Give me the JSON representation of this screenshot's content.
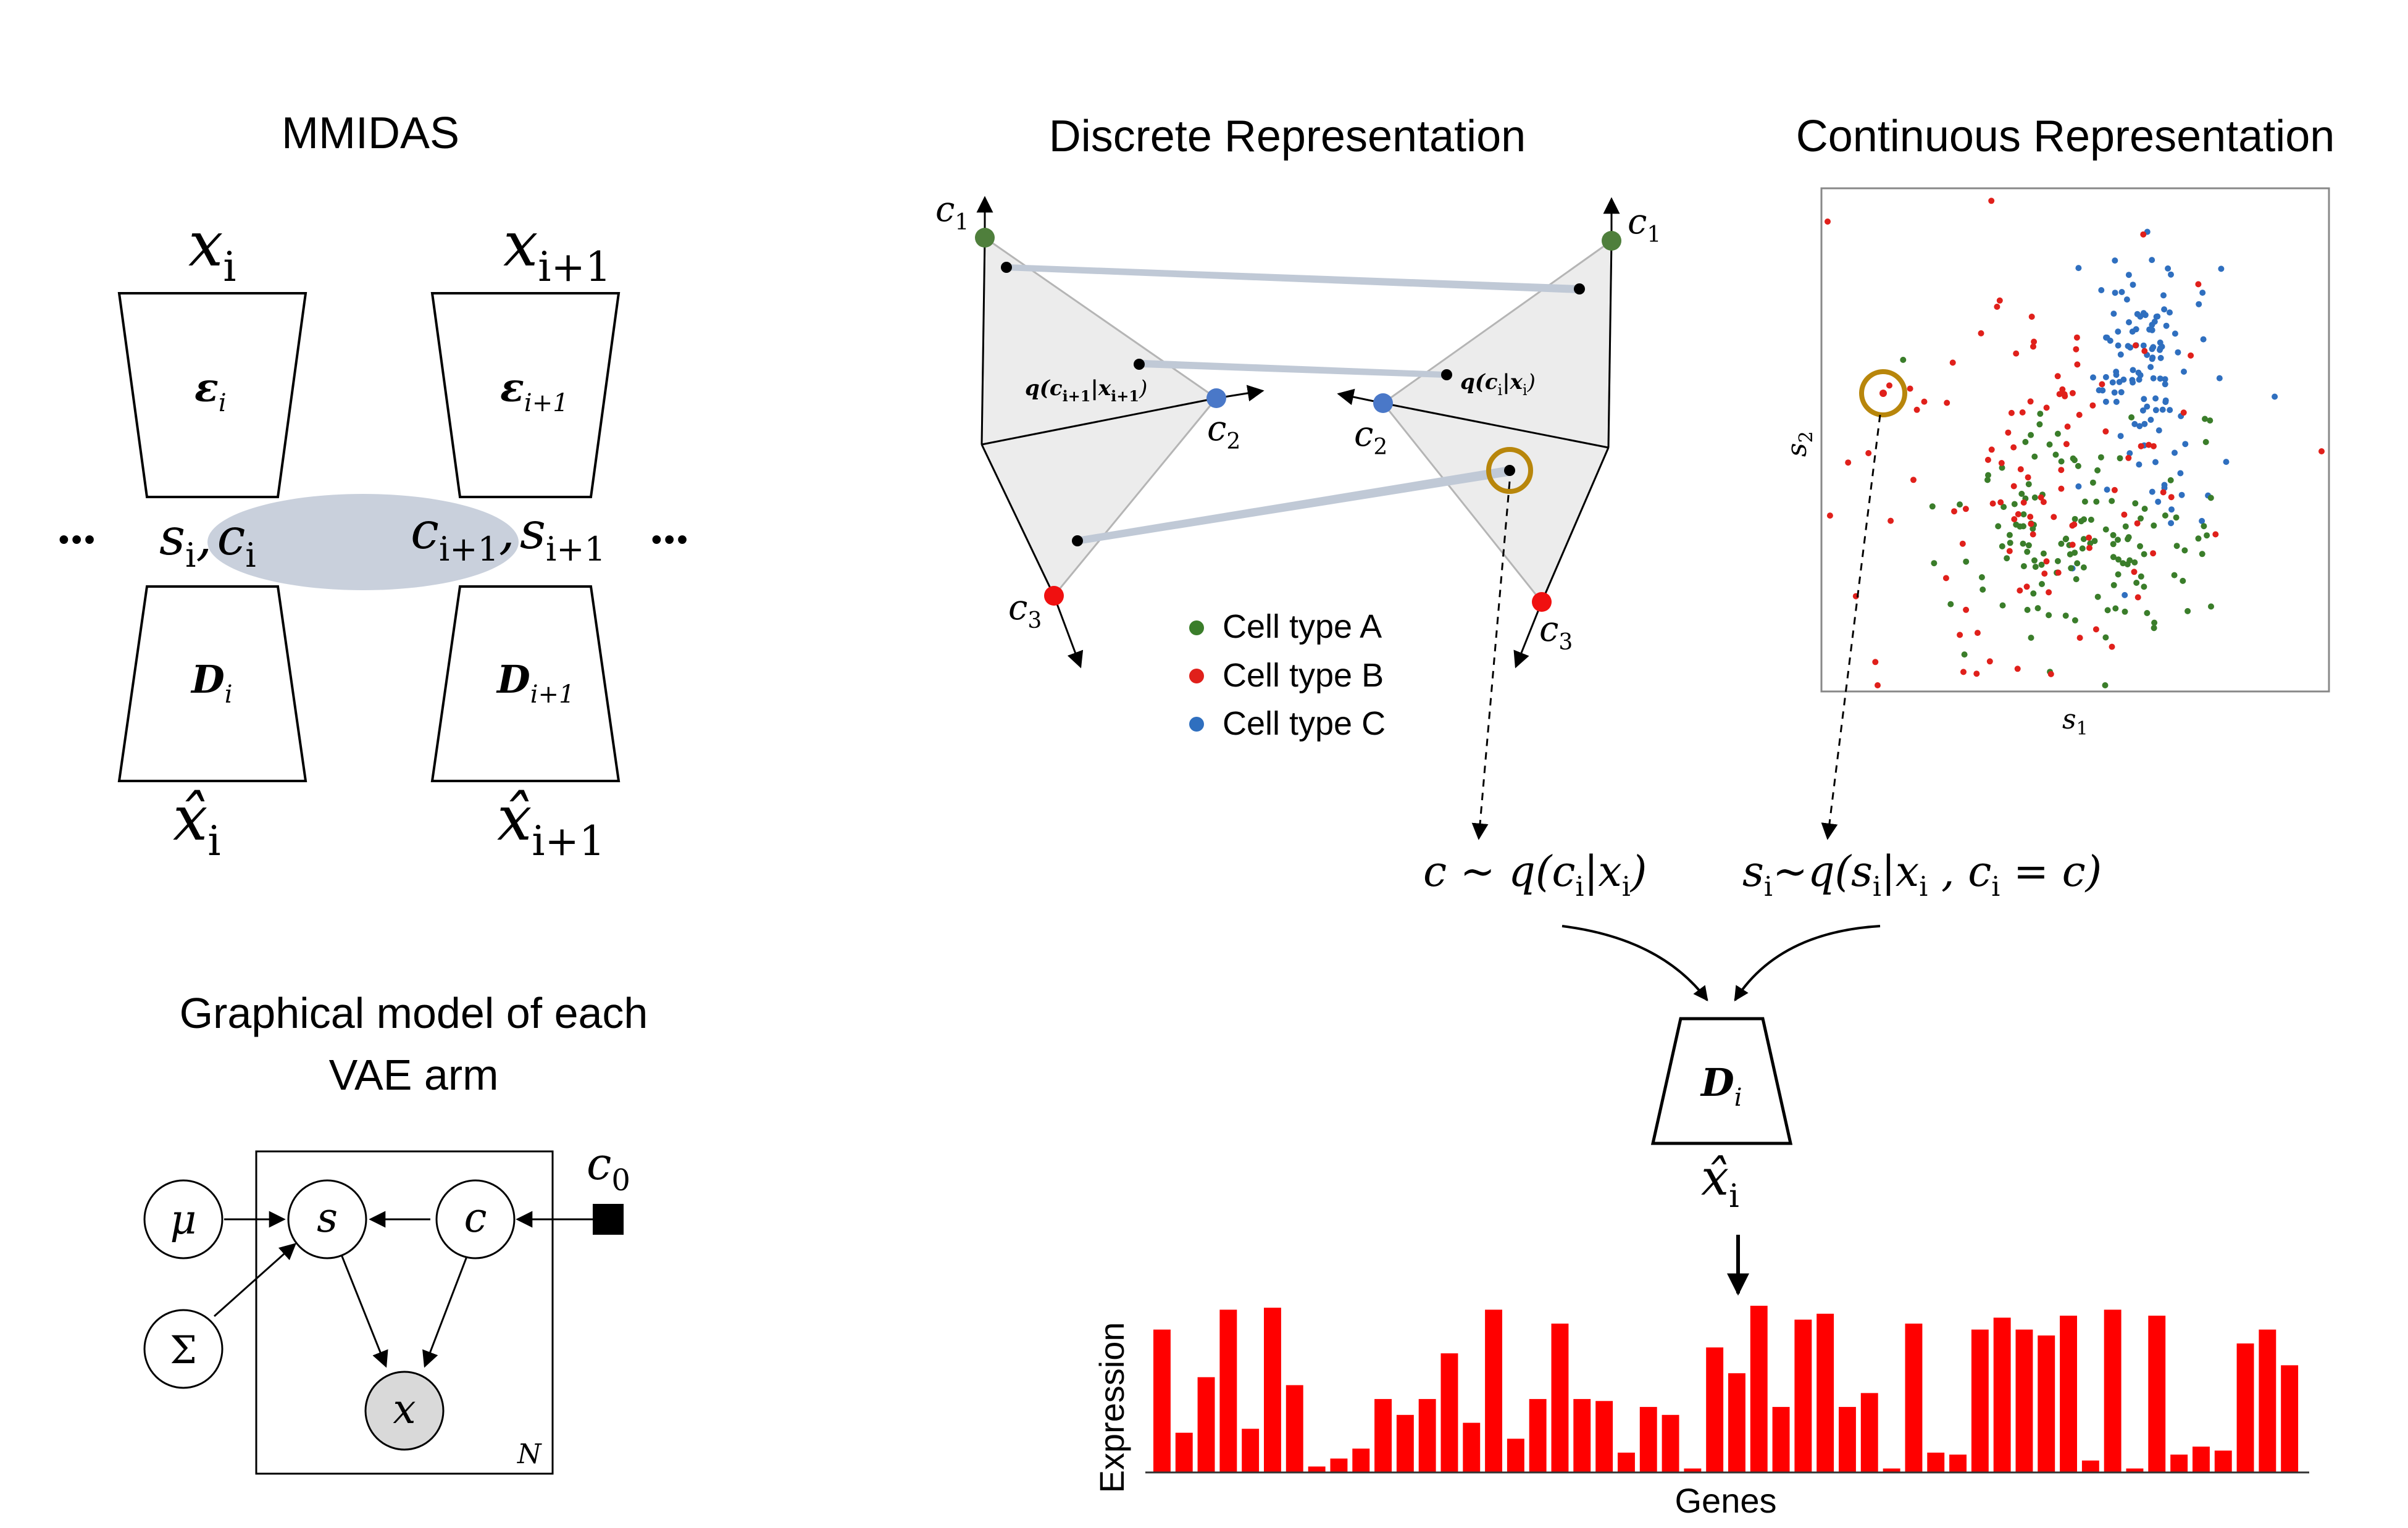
{
  "mmidas": {
    "title": "MMIDAS",
    "x_i": "x",
    "x_i_sub": "i",
    "x_i1": "x",
    "x_i1_sub": "i+1",
    "enc_i": "ε",
    "enc_i_sub": "i",
    "enc_i1": "ε",
    "enc_i1_sub": "i+1",
    "latent_left": "s",
    "latent_left_sub": "i",
    "latent_left_c": "c",
    "latent_left_c_sub": "i",
    "latent_right_c": "c",
    "latent_right_c_sub": "i+1",
    "latent_right_s": "s",
    "latent_right_s_sub": "i+1",
    "comma": ",",
    "dots": "•••",
    "dec_i": "D",
    "dec_i_sub": "i",
    "dec_i1": "D",
    "dec_i1_sub": "i+1",
    "xhat_i": "x̂",
    "xhat_i_sub": "i",
    "xhat_i1": "x̂",
    "xhat_i1_sub": "i+1"
  },
  "graphical_model": {
    "title_line1": "Graphical model of each",
    "title_line2": "VAE arm",
    "mu": "μ",
    "sigma": "Σ",
    "s": "s",
    "c": "c",
    "x": "x",
    "c0": "c",
    "c0_sub": "0",
    "plate": "N"
  },
  "discrete": {
    "title": "Discrete Representation",
    "c1": "c",
    "c1_sub": "1",
    "c2": "c",
    "c2_sub": "2",
    "c3": "c",
    "c3_sub": "3",
    "q_left": "q(c",
    "q_left_sub": "i+1",
    "q_left_mid": "|x",
    "q_left_close": ")",
    "q_right": "q(c",
    "q_right_sub": "i",
    "q_right_mid": "|x",
    "q_right_close": ")",
    "legend": [
      {
        "label": "Cell type A",
        "color": "#3a7d2a"
      },
      {
        "label": "Cell type B",
        "color": "#e0201b"
      },
      {
        "label": "Cell type C",
        "color": "#2f6fbf"
      }
    ]
  },
  "continuous": {
    "title": "Continuous Representation",
    "xlabel": "s",
    "xlabel_sub": "1",
    "ylabel": "s",
    "ylabel_sub": "2"
  },
  "sampling": {
    "c_sample": "c ~ q(c",
    "c_sample_sub": "i",
    "c_sample_mid": "|x",
    "c_sample_sub2": "i",
    "c_sample_close": ")",
    "s_sample": "s",
    "s_sample_sub": "i",
    "s_sample_rest": "~q(s",
    "s_sample_sub2": "i",
    "s_sample_mid": "|x",
    "s_sample_sub3": "i",
    "s_sample_c": " , c",
    "s_sample_sub4": "i",
    "s_sample_close": " = c)",
    "decoder": "D",
    "decoder_sub": "i",
    "xhat": "x̂",
    "xhat_sub": "i"
  },
  "chart_data": {
    "type": "bar",
    "title": "",
    "xlabel": "Genes",
    "ylabel": "Expression",
    "color": "#ff0000",
    "values": [
      72,
      20,
      48,
      82,
      22,
      83,
      44,
      3,
      7,
      12,
      37,
      29,
      37,
      60,
      25,
      82,
      17,
      37,
      75,
      37,
      36,
      10,
      33,
      29,
      2,
      63,
      50,
      84,
      33,
      77,
      80,
      33,
      40,
      2,
      75,
      10,
      9,
      72,
      78,
      72,
      69,
      79,
      6,
      82,
      2,
      79,
      9,
      13,
      11,
      65,
      72,
      54
    ]
  }
}
